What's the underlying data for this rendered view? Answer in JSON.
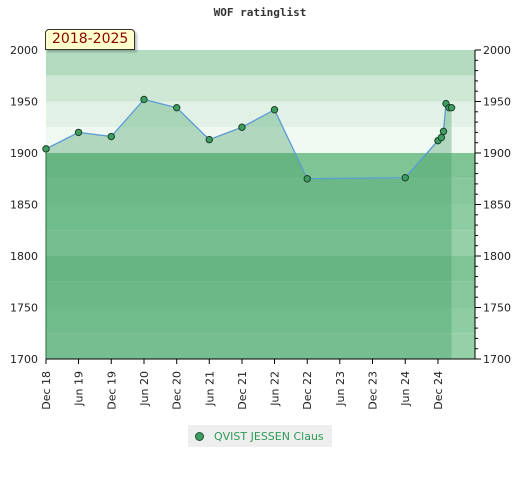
{
  "chart_data": {
    "type": "area",
    "title": "WOF ratinglist",
    "period_label": "2018-2025",
    "ylim": [
      1700,
      2000
    ],
    "yticks": [
      1700,
      1750,
      1800,
      1850,
      1900,
      1950,
      2000
    ],
    "xlim": [
      "2018-12-01",
      "2025-01-15"
    ],
    "xticks": [
      {
        "date": "2018-12-01",
        "label": "Dec 18"
      },
      {
        "date": "2019-06-01",
        "label": "Jun 19"
      },
      {
        "date": "2019-12-01",
        "label": "Dec 19"
      },
      {
        "date": "2020-06-01",
        "label": "Jun 20"
      },
      {
        "date": "2020-12-01",
        "label": "Dec 20"
      },
      {
        "date": "2021-06-01",
        "label": "Jun 21"
      },
      {
        "date": "2021-12-01",
        "label": "Dec 21"
      },
      {
        "date": "2022-06-01",
        "label": "Jun 22"
      },
      {
        "date": "2022-12-01",
        "label": "Dec 22"
      },
      {
        "date": "2023-06-01",
        "label": "Jun 23"
      },
      {
        "date": "2023-12-01",
        "label": "Dec 23"
      },
      {
        "date": "2024-06-01",
        "label": "Jun 24"
      },
      {
        "date": "2024-12-01",
        "label": "Dec 24"
      }
    ],
    "grid": true,
    "legend_position": "bottom",
    "series": [
      {
        "name": "QVIST JESSEN Claus",
        "color": "#3c9f60",
        "line_color": "#5b9bd5",
        "points": [
          {
            "x": "2018-12-01",
            "y": 1904
          },
          {
            "x": "2019-06-01",
            "y": 1920
          },
          {
            "x": "2019-12-01",
            "y": 1916
          },
          {
            "x": "2020-06-01",
            "y": 1952
          },
          {
            "x": "2020-12-01",
            "y": 1944
          },
          {
            "x": "2021-06-01",
            "y": 1913
          },
          {
            "x": "2021-12-01",
            "y": 1925
          },
          {
            "x": "2022-06-01",
            "y": 1942
          },
          {
            "x": "2022-12-01",
            "y": 1875
          },
          {
            "x": "2024-06-01",
            "y": 1876
          },
          {
            "x": "2024-12-01",
            "y": 1912
          },
          {
            "x": "2024-12-20",
            "y": 1915
          },
          {
            "x": "2025-01-01",
            "y": 1921
          },
          {
            "x": "2025-01-15",
            "y": 1948
          },
          {
            "x": "2025-02-01",
            "y": 1944
          },
          {
            "x": "2025-02-15",
            "y": 1944
          }
        ]
      }
    ]
  },
  "bands": [
    {
      "from": 1975,
      "to": 2000,
      "color": "#b3dbbf"
    },
    {
      "from": 1950,
      "to": 1975,
      "color": "#cfe8d6"
    },
    {
      "from": 1925,
      "to": 1950,
      "color": "#e2f1e6"
    },
    {
      "from": 1900,
      "to": 1925,
      "color": "#f0f8f2"
    },
    {
      "from": 1875,
      "to": 1900,
      "color": "#7ec494"
    },
    {
      "from": 1850,
      "to": 1875,
      "color": "#86c89b"
    },
    {
      "from": 1825,
      "to": 1850,
      "color": "#8ecca2"
    },
    {
      "from": 1800,
      "to": 1825,
      "color": "#96d0a9"
    },
    {
      "from": 1775,
      "to": 1800,
      "color": "#7ec494"
    },
    {
      "from": 1750,
      "to": 1775,
      "color": "#86c89b"
    },
    {
      "from": 1725,
      "to": 1750,
      "color": "#8ecca2"
    },
    {
      "from": 1700,
      "to": 1725,
      "color": "#96d0a9"
    }
  ]
}
